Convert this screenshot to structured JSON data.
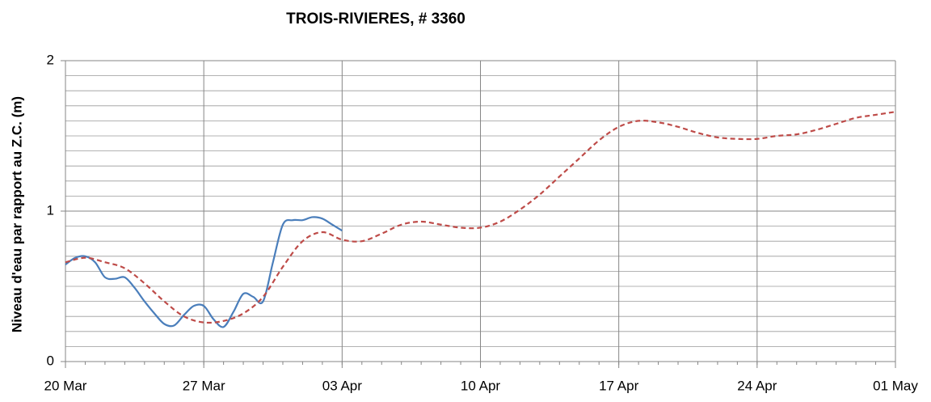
{
  "chart_data": {
    "type": "line",
    "title": "TROIS-RIVIERES, # 3360",
    "y_label": "Niveau d'eau par rapport au Z.C. (m)",
    "xlim": [
      0,
      42
    ],
    "xticks": [
      {
        "value": 0,
        "label": "20 Mar"
      },
      {
        "value": 7,
        "label": "27 Mar"
      },
      {
        "value": 14,
        "label": "03 Apr"
      },
      {
        "value": 21,
        "label": "10 Apr"
      },
      {
        "value": 28,
        "label": "17 Apr"
      },
      {
        "value": 35,
        "label": "24 Apr"
      },
      {
        "value": 42,
        "label": "01 May"
      }
    ],
    "xminorticks": [
      0,
      1,
      2,
      3,
      4,
      5,
      6,
      7,
      8,
      9,
      10,
      11,
      12,
      13,
      14,
      15,
      16,
      17,
      18,
      19,
      20,
      21,
      22,
      23,
      24,
      25,
      26,
      27,
      28,
      29,
      30,
      31,
      32,
      33,
      34,
      35,
      36,
      37,
      38,
      39,
      40,
      41,
      42
    ],
    "ylim": [
      0,
      2
    ],
    "yticks": [
      0,
      1,
      2
    ],
    "yminorticks": [
      0.1,
      0.2,
      0.3,
      0.4,
      0.5,
      0.6,
      0.7,
      0.8,
      0.9,
      1.1,
      1.2,
      1.3,
      1.4,
      1.5,
      1.6,
      1.7,
      1.8,
      1.9
    ],
    "grid": true,
    "series": [
      {
        "color": "#4a7ebb",
        "dash": false,
        "x": [
          0,
          0.5,
          1,
          1.5,
          2,
          2.5,
          3,
          3.5,
          4,
          4.5,
          5,
          5.5,
          6,
          6.5,
          7,
          7.5,
          8,
          8.5,
          9,
          9.5,
          10,
          10.5,
          11,
          11.5,
          12,
          12.5,
          13,
          13.5,
          14
        ],
        "values": [
          0.645,
          0.69,
          0.7,
          0.66,
          0.56,
          0.55,
          0.56,
          0.49,
          0.4,
          0.32,
          0.25,
          0.24,
          0.31,
          0.37,
          0.37,
          0.28,
          0.23,
          0.33,
          0.45,
          0.43,
          0.4,
          0.66,
          0.91,
          0.94,
          0.94,
          0.96,
          0.95,
          0.91,
          0.87
        ]
      },
      {
        "color": "#be4b48",
        "dash": true,
        "x": [
          0,
          1,
          2,
          3,
          4,
          5,
          6,
          7,
          8,
          9,
          10,
          11,
          12,
          13,
          14,
          15,
          16,
          17,
          18,
          19,
          20,
          21,
          22,
          23,
          24,
          25,
          26,
          27,
          28,
          29,
          30,
          31,
          32,
          33,
          34,
          35,
          36,
          37,
          38,
          39,
          40,
          41,
          42
        ],
        "values": [
          0.66,
          0.69,
          0.66,
          0.62,
          0.52,
          0.4,
          0.3,
          0.26,
          0.27,
          0.32,
          0.43,
          0.63,
          0.8,
          0.86,
          0.81,
          0.8,
          0.85,
          0.91,
          0.93,
          0.91,
          0.89,
          0.89,
          0.93,
          1.01,
          1.11,
          1.23,
          1.35,
          1.47,
          1.56,
          1.6,
          1.59,
          1.56,
          1.52,
          1.49,
          1.48,
          1.48,
          1.5,
          1.51,
          1.54,
          1.58,
          1.62,
          1.64,
          1.66
        ]
      }
    ]
  }
}
